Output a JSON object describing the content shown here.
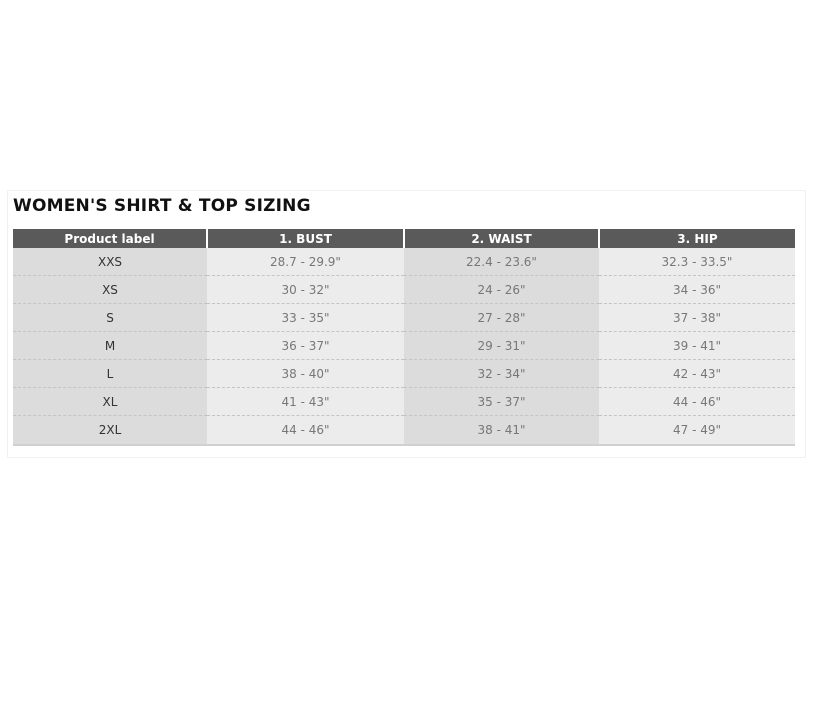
{
  "title": "WOMEN'S SHIRT & TOP SIZING",
  "headers": [
    "Product label",
    "1. BUST",
    "2. WAIST",
    "3. HIP"
  ],
  "rows": [
    [
      "XXS",
      "28.7 - 29.9\"",
      "22.4 - 23.6\"",
      "32.3 - 33.5\""
    ],
    [
      "XS",
      "30 - 32\"",
      "24 - 26\"",
      "34 - 36\""
    ],
    [
      "S",
      "33 - 35\"",
      "27 - 28\"",
      "37 - 38\""
    ],
    [
      "M",
      "36 - 37\"",
      "29 - 31\"",
      "39 - 41\""
    ],
    [
      "L",
      "38 - 40\"",
      "32 - 34\"",
      "42 - 43\""
    ],
    [
      "XL",
      "41 - 43\"",
      "35 - 37\"",
      "44 - 46\""
    ],
    [
      "2XL",
      "44 - 46\"",
      "38 - 41\"",
      "47 - 49\""
    ]
  ],
  "colors": {
    "header_bg": "#5a5a5a",
    "dark_col": "#dcdcdc",
    "light_col": "#ececec"
  }
}
